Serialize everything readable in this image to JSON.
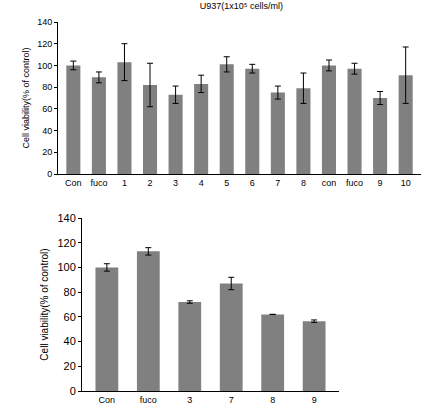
{
  "chart_data": [
    {
      "type": "bar",
      "title": "U937(1x10⁵ cells/ml)",
      "y_label": "Cell viability(% of control)",
      "categories": [
        "Con",
        "fuco",
        "1",
        "2",
        "3",
        "4",
        "5",
        "6",
        "7",
        "8",
        "con",
        "fuco",
        "9",
        "10"
      ],
      "values": [
        100,
        89,
        103,
        82,
        73,
        83,
        101,
        97,
        75,
        79,
        100,
        97,
        70,
        91
      ],
      "errors": [
        4,
        5,
        17,
        20,
        8,
        8,
        7,
        4,
        6,
        14,
        5,
        5,
        6,
        26
      ],
      "color": "#808080",
      "ylim": [
        0,
        140
      ],
      "yticks": [
        0,
        20,
        40,
        60,
        80,
        100,
        120,
        140
      ],
      "grid": false
    },
    {
      "type": "bar",
      "y_label": "Cell viability(% of control)",
      "categories": [
        "Con",
        "fuco",
        "3",
        "7",
        "8",
        "9"
      ],
      "values": [
        100,
        113,
        72,
        87,
        62,
        56.5
      ],
      "errors": [
        3,
        3,
        1,
        5,
        0,
        1
      ],
      "color": "#808080",
      "ylim": [
        0,
        140
      ],
      "yticks": [
        0,
        20,
        40,
        60,
        80,
        100,
        120,
        140
      ],
      "grid": false
    }
  ]
}
